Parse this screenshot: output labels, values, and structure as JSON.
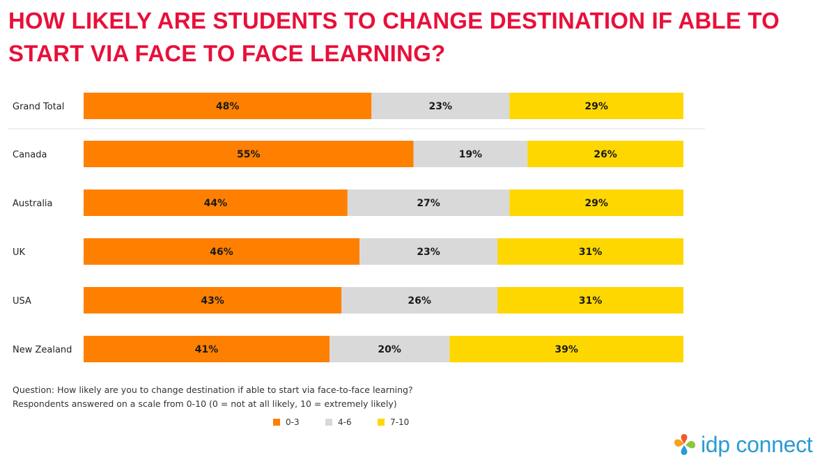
{
  "title": "HOW LIKELY ARE STUDENTS TO CHANGE DESTINATION IF ABLE TO START VIA FACE TO FACE LEARNING?",
  "colors": {
    "title": "#e8103a",
    "low": "#ff8000",
    "mid": "#d9d9d9",
    "high": "#ffd700",
    "logo_text": "#2a9bd4"
  },
  "chart_data": {
    "type": "bar",
    "orientation": "horizontal",
    "stacked": true,
    "normalized_percent": true,
    "categories": [
      "Grand Total",
      "Canada",
      "Australia",
      "UK",
      "USA",
      "New Zealand"
    ],
    "series": [
      {
        "name": "0-3",
        "color": "#ff8000",
        "values": [
          48,
          55,
          44,
          46,
          43,
          41
        ],
        "labels": [
          "48%",
          "55%",
          "44%",
          "46%",
          "43%",
          "41%"
        ]
      },
      {
        "name": "4-6",
        "color": "#d9d9d9",
        "values": [
          23,
          19,
          27,
          23,
          26,
          20
        ],
        "labels": [
          "23%",
          "19%",
          "27%",
          "23%",
          "26%",
          "20%"
        ]
      },
      {
        "name": "7-10",
        "color": "#ffd700",
        "values": [
          29,
          26,
          29,
          31,
          31,
          39
        ],
        "labels": [
          "29%",
          "26%",
          "29%",
          "31%",
          "31%",
          "39%"
        ]
      }
    ],
    "xlim": [
      0,
      100
    ],
    "legend_position": "bottom"
  },
  "notes": {
    "line1": "Question: How likely are you to change destination if able to start via face-to-face learning?",
    "line2": "Respondents answered on a scale from 0-10 (0 = not at all likely, 10 = extremely likely)"
  },
  "legend": [
    {
      "label": "0-3",
      "color": "#ff8000"
    },
    {
      "label": "4-6",
      "color": "#d9d9d9"
    },
    {
      "label": "7-10",
      "color": "#ffd700"
    }
  ],
  "logo": {
    "text": "idp connect",
    "icon": "idp-logo-icon"
  }
}
